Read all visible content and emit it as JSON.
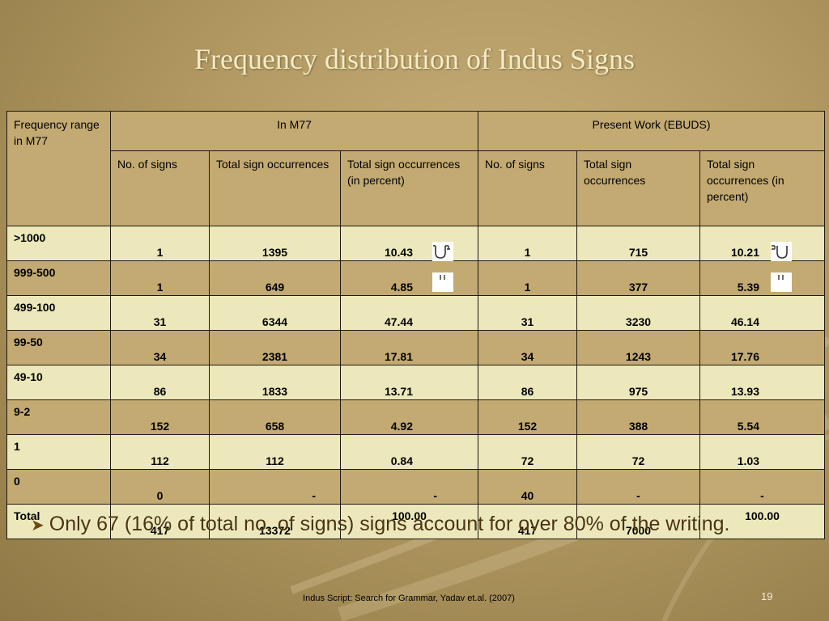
{
  "slide": {
    "title": "Frequency distribution of Indus Signs",
    "bullet": "Only 67 (16% of total no. of signs) signs account for over 80% of the writing.",
    "footer": "Indus Script: Search for Grammar, Yadav et.al. (2007)",
    "page_number": "19"
  },
  "table": {
    "corner": "Frequency range in M77",
    "group1": "In M77",
    "group2": "Present Work (EBUDS)",
    "subheaders": {
      "no_signs": "No. of signs",
      "total_occ": "Total sign occurrences",
      "total_pct": "Total sign occurrences (in percent)"
    },
    "rows": [
      {
        "range": ">1000",
        "m_n": "1",
        "m_t": "1395",
        "m_p": "10.43",
        "e_n": "1",
        "e_t": "715",
        "e_p": "10.21"
      },
      {
        "range": "999-500",
        "m_n": "1",
        "m_t": "649",
        "m_p": "4.85",
        "e_n": "1",
        "e_t": "377",
        "e_p": "5.39"
      },
      {
        "range": "499-100",
        "m_n": "31",
        "m_t": "6344",
        "m_p": "47.44",
        "e_n": "31",
        "e_t": "3230",
        "e_p": "46.14"
      },
      {
        "range": "99-50",
        "m_n": "34",
        "m_t": "2381",
        "m_p": "17.81",
        "e_n": "34",
        "e_t": "1243",
        "e_p": "17.76"
      },
      {
        "range": "49-10",
        "m_n": "86",
        "m_t": "1833",
        "m_p": "13.71",
        "e_n": "86",
        "e_t": "975",
        "e_p": "13.93"
      },
      {
        "range": "9-2",
        "m_n": "152",
        "m_t": "658",
        "m_p": "4.92",
        "e_n": "152",
        "e_t": "388",
        "e_p": "5.54"
      },
      {
        "range": "1",
        "m_n": "112",
        "m_t": "112",
        "m_p": "0.84",
        "e_n": "72",
        "e_t": "72",
        "e_p": "1.03"
      },
      {
        "range": "0",
        "m_n": "0",
        "m_t": "-",
        "m_p": "-",
        "e_n": "40",
        "e_t": "-",
        "e_p": "-"
      },
      {
        "range": "Total",
        "m_n": "417",
        "m_t": "13372",
        "m_p": "100.00",
        "e_n": "417",
        "e_t": "7000",
        "e_p": "100.00"
      }
    ]
  },
  "icons": {
    "jar_sign": "indus-jar-sign-icon",
    "strokes_sign": "indus-two-strokes-sign-icon"
  }
}
